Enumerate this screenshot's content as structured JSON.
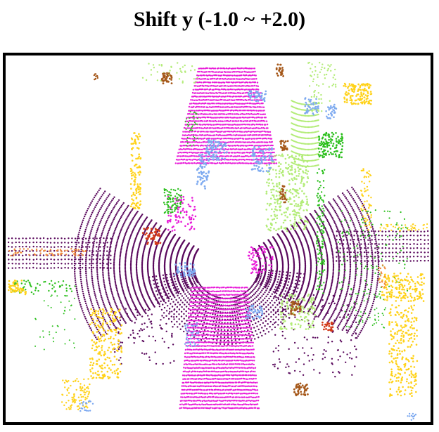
{
  "title": "Shift y (-1.0 ~ +2.0)",
  "palette": {
    "road": "#e81bd8",
    "sidewalk": "#5b0b5e",
    "terrain": "#b3ec78",
    "vegetation": "#2bbf1c",
    "car": "#ffd21a",
    "manmade": "#7eaaf0",
    "trunk": "#a5581a",
    "pole": "#f08a3a",
    "barrier": "#d23a1a"
  }
}
